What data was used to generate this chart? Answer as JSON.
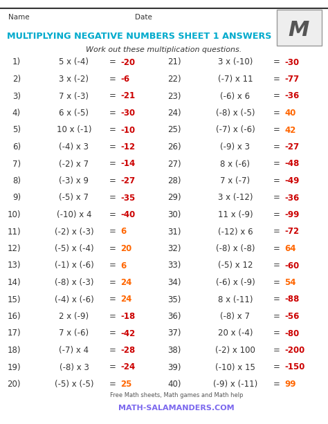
{
  "title": "MULTIPLYING NEGATIVE NUMBERS SHEET 1 ANSWERS",
  "title_color": "#00AACC",
  "subtitle": "Work out these multiplication questions.",
  "name_label": "Name",
  "date_label": "Date",
  "bg_color": "#FFFFFF",
  "neg_color": "#CC0000",
  "pos_color": "#FF6600",
  "black": "#333333",
  "questions_left": [
    {
      "n": "1)",
      "expr": "5 x (-4)",
      "ans": "-20",
      "positive": false
    },
    {
      "n": "2)",
      "expr": "3 x (-2)",
      "ans": "-6",
      "positive": false
    },
    {
      "n": "3)",
      "expr": "7 x (-3)",
      "ans": "-21",
      "positive": false
    },
    {
      "n": "4)",
      "expr": "6 x (-5)",
      "ans": "-30",
      "positive": false
    },
    {
      "n": "5)",
      "expr": "10 x (-1)",
      "ans": "-10",
      "positive": false
    },
    {
      "n": "6)",
      "expr": "(-4) x 3",
      "ans": "-12",
      "positive": false
    },
    {
      "n": "7)",
      "expr": "(-2) x 7",
      "ans": "-14",
      "positive": false
    },
    {
      "n": "8)",
      "expr": "(-3) x 9",
      "ans": "-27",
      "positive": false
    },
    {
      "n": "9)",
      "expr": "(-5) x 7",
      "ans": "-35",
      "positive": false
    },
    {
      "n": "10)",
      "expr": "(-10) x 4",
      "ans": "-40",
      "positive": false
    },
    {
      "n": "11)",
      "expr": "(-2) x (-3)",
      "ans": "6",
      "positive": true
    },
    {
      "n": "12)",
      "expr": "(-5) x (-4)",
      "ans": "20",
      "positive": true
    },
    {
      "n": "13)",
      "expr": "(-1) x (-6)",
      "ans": "6",
      "positive": true
    },
    {
      "n": "14)",
      "expr": "(-8) x (-3)",
      "ans": "24",
      "positive": true
    },
    {
      "n": "15)",
      "expr": "(-4) x (-6)",
      "ans": "24",
      "positive": true
    },
    {
      "n": "16)",
      "expr": "2 x (-9)",
      "ans": "-18",
      "positive": false
    },
    {
      "n": "17)",
      "expr": "7 x (-6)",
      "ans": "-42",
      "positive": false
    },
    {
      "n": "18)",
      "expr": "(-7) x 4",
      "ans": "-28",
      "positive": false
    },
    {
      "n": "19)",
      "expr": "(-8) x 3",
      "ans": "-24",
      "positive": false
    },
    {
      "n": "20)",
      "expr": "(-5) x (-5)",
      "ans": "25",
      "positive": true
    }
  ],
  "questions_right": [
    {
      "n": "21)",
      "expr": "3 x (-10)",
      "ans": "-30",
      "positive": false
    },
    {
      "n": "22)",
      "expr": "(-7) x 11",
      "ans": "-77",
      "positive": false
    },
    {
      "n": "23)",
      "expr": "(-6) x 6",
      "ans": "-36",
      "positive": false
    },
    {
      "n": "24)",
      "expr": "(-8) x (-5)",
      "ans": "40",
      "positive": true
    },
    {
      "n": "25)",
      "expr": "(-7) x (-6)",
      "ans": "42",
      "positive": true
    },
    {
      "n": "26)",
      "expr": "(-9) x 3",
      "ans": "-27",
      "positive": false
    },
    {
      "n": "27)",
      "expr": "8 x (-6)",
      "ans": "-48",
      "positive": false
    },
    {
      "n": "28)",
      "expr": "7 x (-7)",
      "ans": "-49",
      "positive": false
    },
    {
      "n": "29)",
      "expr": "3 x (-12)",
      "ans": "-36",
      "positive": false
    },
    {
      "n": "30)",
      "expr": "11 x (-9)",
      "ans": "-99",
      "positive": false
    },
    {
      "n": "31)",
      "expr": "(-12) x 6",
      "ans": "-72",
      "positive": false
    },
    {
      "n": "32)",
      "expr": "(-8) x (-8)",
      "ans": "64",
      "positive": true
    },
    {
      "n": "33)",
      "expr": "(-5) x 12",
      "ans": "-60",
      "positive": false
    },
    {
      "n": "34)",
      "expr": "(-6) x (-9)",
      "ans": "54",
      "positive": true
    },
    {
      "n": "35)",
      "expr": "8 x (-11)",
      "ans": "-88",
      "positive": false
    },
    {
      "n": "36)",
      "expr": "(-8) x 7",
      "ans": "-56",
      "positive": false
    },
    {
      "n": "37)",
      "expr": "20 x (-4)",
      "ans": "-80",
      "positive": false
    },
    {
      "n": "38)",
      "expr": "(-2) x 100",
      "ans": "-200",
      "positive": false
    },
    {
      "n": "39)",
      "expr": "(-10) x 15",
      "ans": "-150",
      "positive": false
    },
    {
      "n": "40)",
      "expr": "(-9) x (-11)",
      "ans": "99",
      "positive": true
    }
  ],
  "footer_text": "Free Math sheets, Math games and Math help",
  "footer_site": "MATH-SALAMANDERS.COM",
  "footer_site_color": "#7B68EE"
}
